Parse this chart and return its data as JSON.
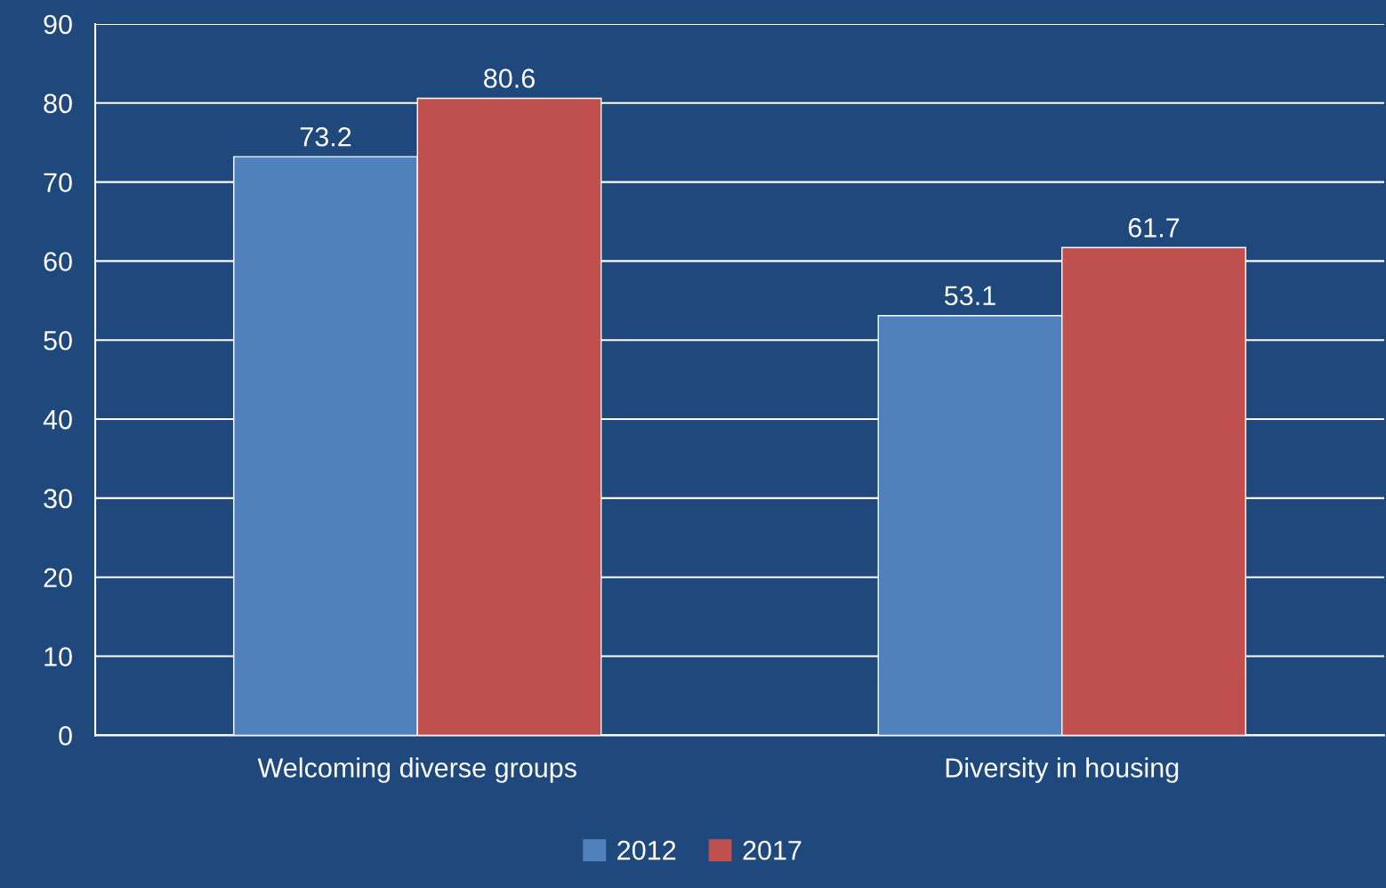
{
  "chart_data": {
    "type": "bar",
    "categories": [
      "Welcoming diverse groups",
      "Diversity in housing"
    ],
    "series": [
      {
        "name": "2012",
        "color": "#4f81bd",
        "values": [
          73.2,
          53.1
        ]
      },
      {
        "name": "2017",
        "color": "#c0504d",
        "values": [
          80.6,
          61.7
        ]
      }
    ],
    "ylim": [
      0,
      90
    ],
    "yticks": [
      0,
      10,
      20,
      30,
      40,
      50,
      60,
      70,
      80,
      90
    ],
    "grid": "y",
    "legend": "bottom",
    "data_labels": true
  }
}
